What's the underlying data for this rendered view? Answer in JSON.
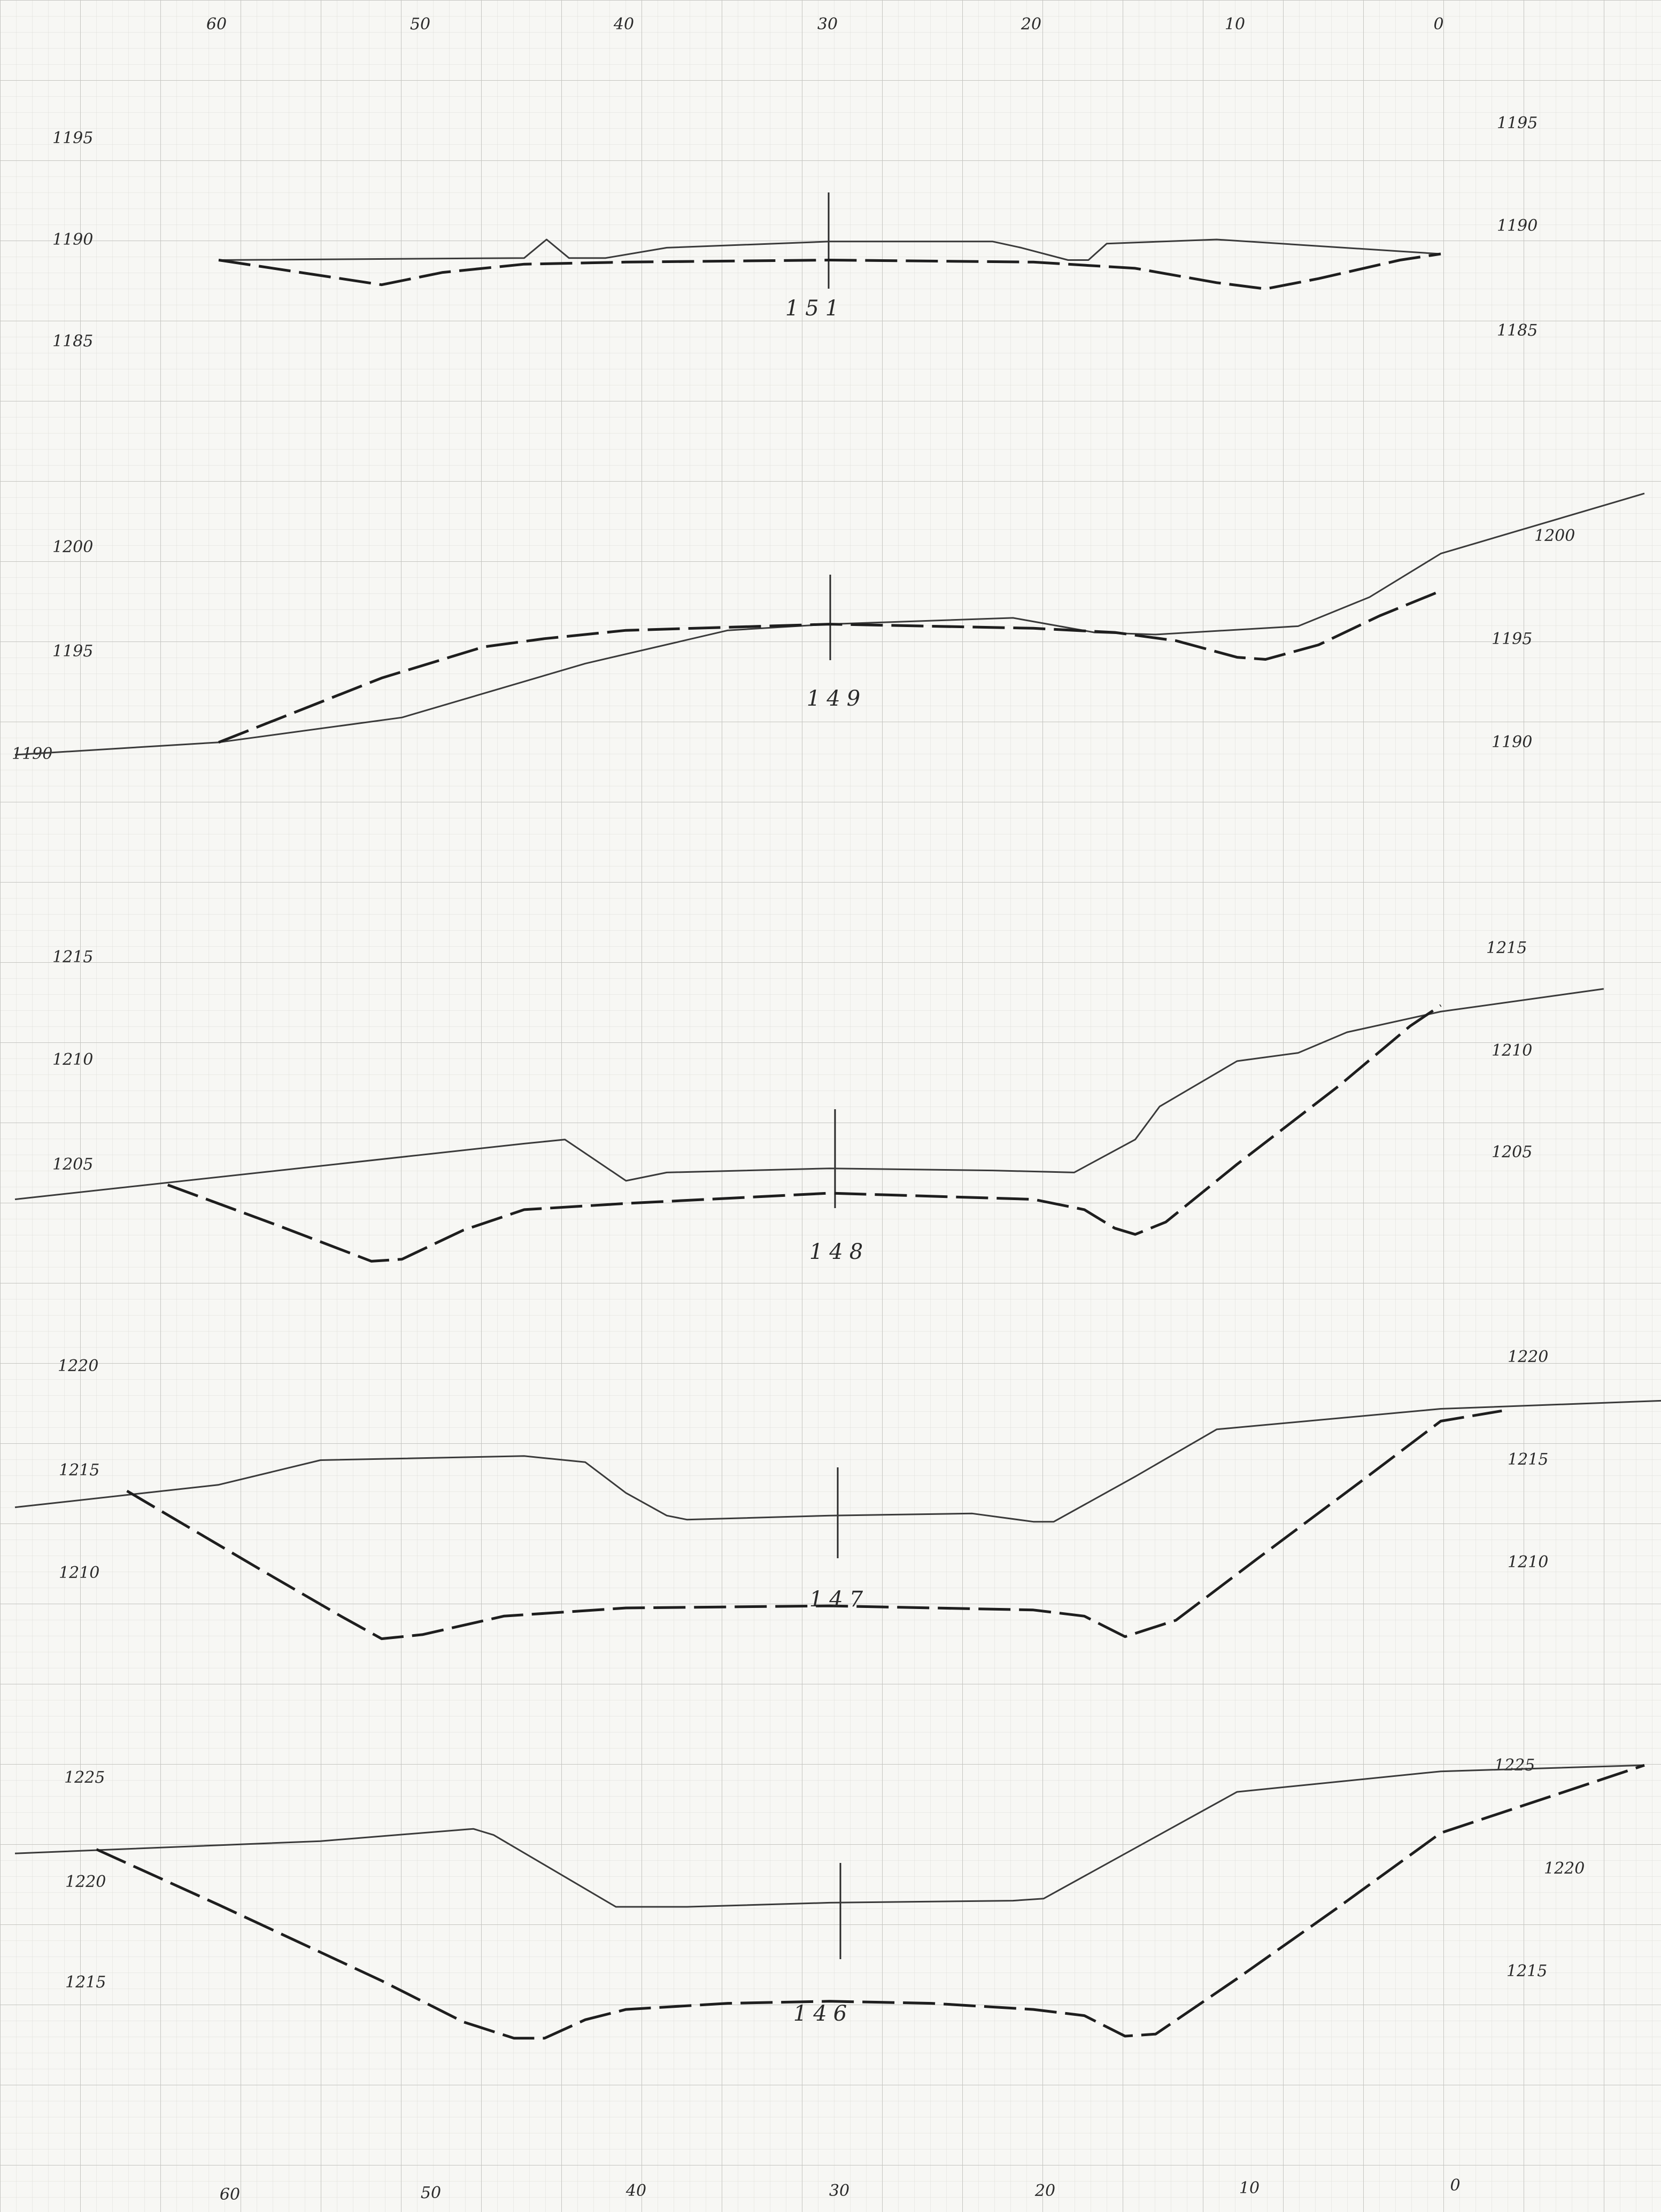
{
  "sheet": {
    "top_axis": [
      "60",
      "50",
      "40",
      "30",
      "20",
      "10",
      "0"
    ],
    "bottom_axis": [
      "60",
      "50",
      "40",
      "30",
      "20",
      "10",
      "0"
    ],
    "colors": {
      "paper": "#f7f7f4",
      "grid_minor": "#dcdcd8",
      "grid_major": "#c4c4c0",
      "ink": "#2a2a2a"
    }
  },
  "sections": [
    {
      "id": "151",
      "left_elev": [
        "1195",
        "1190",
        "1185"
      ],
      "right_elev": [
        "1195",
        "1190",
        "1185"
      ],
      "ground": [
        [
          60,
          1189
        ],
        [
          45,
          1189.1
        ],
        [
          43.9,
          1190
        ],
        [
          42.8,
          1189.1
        ],
        [
          41,
          1189.1
        ],
        [
          38,
          1189.6
        ],
        [
          30,
          1189.9
        ],
        [
          22,
          1189.9
        ],
        [
          20.6,
          1189.6
        ],
        [
          18.3,
          1189
        ],
        [
          17.3,
          1189
        ],
        [
          16.4,
          1189.8
        ],
        [
          11,
          1190
        ],
        [
          0,
          1189.3
        ]
      ],
      "design": [
        [
          60,
          1189
        ],
        [
          56,
          1188.4
        ],
        [
          52,
          1187.8
        ],
        [
          49,
          1188.4
        ],
        [
          45,
          1188.8
        ],
        [
          40,
          1188.9
        ],
        [
          30,
          1189
        ],
        [
          20,
          1188.9
        ],
        [
          15,
          1188.6
        ],
        [
          11,
          1187.9
        ],
        [
          8.6,
          1187.6
        ],
        [
          6,
          1188.1
        ],
        [
          2,
          1189
        ],
        [
          0,
          1189.3
        ]
      ]
    },
    {
      "id": "149",
      "left_elev": [
        "1200",
        "1195",
        "1190"
      ],
      "right_elev": [
        "1200",
        "1195",
        "1190"
      ],
      "ground": [
        [
          70,
          1190
        ],
        [
          60,
          1190.6
        ],
        [
          51,
          1191.8
        ],
        [
          42,
          1194.4
        ],
        [
          35,
          1196
        ],
        [
          30,
          1196.3
        ],
        [
          21,
          1196.6
        ],
        [
          17,
          1195.9
        ],
        [
          14,
          1195.8
        ],
        [
          7,
          1196.2
        ],
        [
          3.5,
          1197.6
        ],
        [
          0,
          1199.7
        ],
        [
          -10,
          1202.6
        ]
      ],
      "design": [
        [
          60,
          1190.6
        ],
        [
          52,
          1193.7
        ],
        [
          47,
          1195.2
        ],
        [
          44,
          1195.6
        ],
        [
          40,
          1196
        ],
        [
          30,
          1196.3
        ],
        [
          20,
          1196.1
        ],
        [
          16,
          1195.9
        ],
        [
          13,
          1195.5
        ],
        [
          10,
          1194.7
        ],
        [
          8.6,
          1194.6
        ],
        [
          6,
          1195.3
        ],
        [
          3,
          1196.7
        ],
        [
          0,
          1197.9
        ]
      ]
    },
    {
      "id": "148",
      "left_elev": [
        "1215",
        "1210",
        "1205"
      ],
      "right_elev": [
        "1215",
        "1210",
        "1205"
      ],
      "ground": [
        [
          70,
          1203.3
        ],
        [
          45,
          1206
        ],
        [
          43,
          1206.2
        ],
        [
          40,
          1204.2
        ],
        [
          38,
          1204.6
        ],
        [
          30,
          1204.8
        ],
        [
          22,
          1204.7
        ],
        [
          18,
          1204.6
        ],
        [
          15,
          1206.2
        ],
        [
          13.8,
          1207.8
        ],
        [
          10,
          1210
        ],
        [
          7,
          1210.4
        ],
        [
          4.6,
          1211.4
        ],
        [
          0,
          1212.4
        ],
        [
          -8,
          1213.5
        ]
      ],
      "design": [
        [
          62.5,
          1204
        ],
        [
          57,
          1202
        ],
        [
          52.5,
          1200.3
        ],
        [
          51,
          1200.4
        ],
        [
          48,
          1201.8
        ],
        [
          45,
          1202.8
        ],
        [
          40,
          1203.1
        ],
        [
          30,
          1203.6
        ],
        [
          20,
          1203.3
        ],
        [
          17.5,
          1202.8
        ],
        [
          16,
          1201.9
        ],
        [
          15,
          1201.6
        ],
        [
          13.5,
          1202.2
        ],
        [
          10,
          1205
        ],
        [
          5,
          1208.8
        ],
        [
          1.5,
          1211.7
        ],
        [
          0,
          1212.7
        ]
      ]
    },
    {
      "id": "147",
      "left_elev": [
        "1220",
        "1215",
        "1210"
      ],
      "right_elev": [
        "1220",
        "1215",
        "1210"
      ],
      "ground": [
        [
          70,
          1213
        ],
        [
          60,
          1214.1
        ],
        [
          55,
          1215.3
        ],
        [
          45,
          1215.5
        ],
        [
          42,
          1215.2
        ],
        [
          40,
          1213.7
        ],
        [
          38,
          1212.6
        ],
        [
          37,
          1212.4
        ],
        [
          30,
          1212.6
        ],
        [
          23,
          1212.7
        ],
        [
          20,
          1212.3
        ],
        [
          19,
          1212.3
        ],
        [
          15,
          1214.5
        ],
        [
          11,
          1216.8
        ],
        [
          0,
          1217.8
        ],
        [
          -11,
          1218.2
        ]
      ],
      "design": [
        [
          64.5,
          1213.8
        ],
        [
          58,
          1210
        ],
        [
          54,
          1207.7
        ],
        [
          52,
          1206.6
        ],
        [
          50,
          1206.8
        ],
        [
          46,
          1207.7
        ],
        [
          40,
          1208.1
        ],
        [
          30,
          1208.2
        ],
        [
          20,
          1208
        ],
        [
          17.5,
          1207.7
        ],
        [
          15.5,
          1206.7
        ],
        [
          13,
          1207.5
        ],
        [
          9,
          1210.5
        ],
        [
          4,
          1214.2
        ],
        [
          0,
          1217.2
        ],
        [
          -3,
          1217.7
        ]
      ]
    },
    {
      "id": "146",
      "left_elev": [
        "1225",
        "1220",
        "1215"
      ],
      "right_elev": [
        "1225",
        "1220",
        "1215"
      ],
      "ground": [
        [
          70,
          1220.8
        ],
        [
          55,
          1221.4
        ],
        [
          47.5,
          1222
        ],
        [
          46.5,
          1221.7
        ],
        [
          40.5,
          1218.2
        ],
        [
          37,
          1218.2
        ],
        [
          30,
          1218.4
        ],
        [
          21,
          1218.5
        ],
        [
          19.5,
          1218.6
        ],
        [
          10,
          1223.8
        ],
        [
          0,
          1224.8
        ],
        [
          -10,
          1225.1
        ]
      ],
      "design": [
        [
          66,
          1221
        ],
        [
          60,
          1218.3
        ],
        [
          52,
          1214.6
        ],
        [
          48,
          1212.6
        ],
        [
          45.5,
          1211.8
        ],
        [
          44,
          1211.8
        ],
        [
          42,
          1212.7
        ],
        [
          40,
          1213.2
        ],
        [
          35,
          1213.5
        ],
        [
          30,
          1213.6
        ],
        [
          25,
          1213.5
        ],
        [
          20,
          1213.2
        ],
        [
          17.5,
          1212.9
        ],
        [
          15.5,
          1211.9
        ],
        [
          14,
          1212
        ],
        [
          10,
          1214.7
        ],
        [
          5,
          1218.2
        ],
        [
          0,
          1221.8
        ],
        [
          -10,
          1225.1
        ]
      ]
    }
  ]
}
